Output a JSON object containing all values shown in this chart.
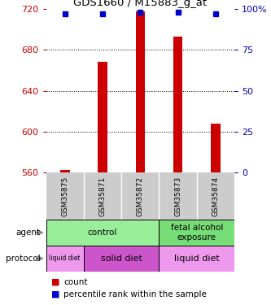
{
  "title": "GDS1660 / M15883_g_at",
  "samples": [
    "GSM35875",
    "GSM35871",
    "GSM35872",
    "GSM35873",
    "GSM35874"
  ],
  "count_values": [
    562,
    668,
    718,
    693,
    608
  ],
  "percentile_values": [
    97,
    97,
    98,
    98,
    97
  ],
  "ylim_left": [
    560,
    720
  ],
  "ylim_right": [
    0,
    100
  ],
  "yticks_left": [
    560,
    600,
    640,
    680,
    720
  ],
  "yticks_right": [
    0,
    25,
    50,
    75,
    100
  ],
  "ytick_right_labels": [
    "0",
    "25",
    "50",
    "75",
    "100%"
  ],
  "bar_color": "#cc0000",
  "dot_color": "#0000cc",
  "agent_spans": [
    {
      "label": "control",
      "start": 0,
      "end": 3,
      "color": "#99ee99"
    },
    {
      "label": "fetal alcohol\nexposure",
      "start": 3,
      "end": 5,
      "color": "#77dd77"
    }
  ],
  "protocol_spans": [
    {
      "label": "liquid diet",
      "start": 0,
      "end": 1,
      "color": "#ee99ee",
      "fontsize": 5.5
    },
    {
      "label": "solid diet",
      "start": 1,
      "end": 3,
      "color": "#cc55cc",
      "fontsize": 8
    },
    {
      "label": "liquid diet",
      "start": 3,
      "end": 5,
      "color": "#ee99ee",
      "fontsize": 8
    }
  ],
  "legend_count_color": "#cc0000",
  "legend_pct_color": "#0000cc",
  "left_tick_color": "#cc0000",
  "right_tick_color": "#0000bb",
  "background_color": "#ffffff",
  "label_row_bg": "#cccccc",
  "grid_ticks": [
    600,
    640,
    680
  ],
  "bar_width": 0.25
}
